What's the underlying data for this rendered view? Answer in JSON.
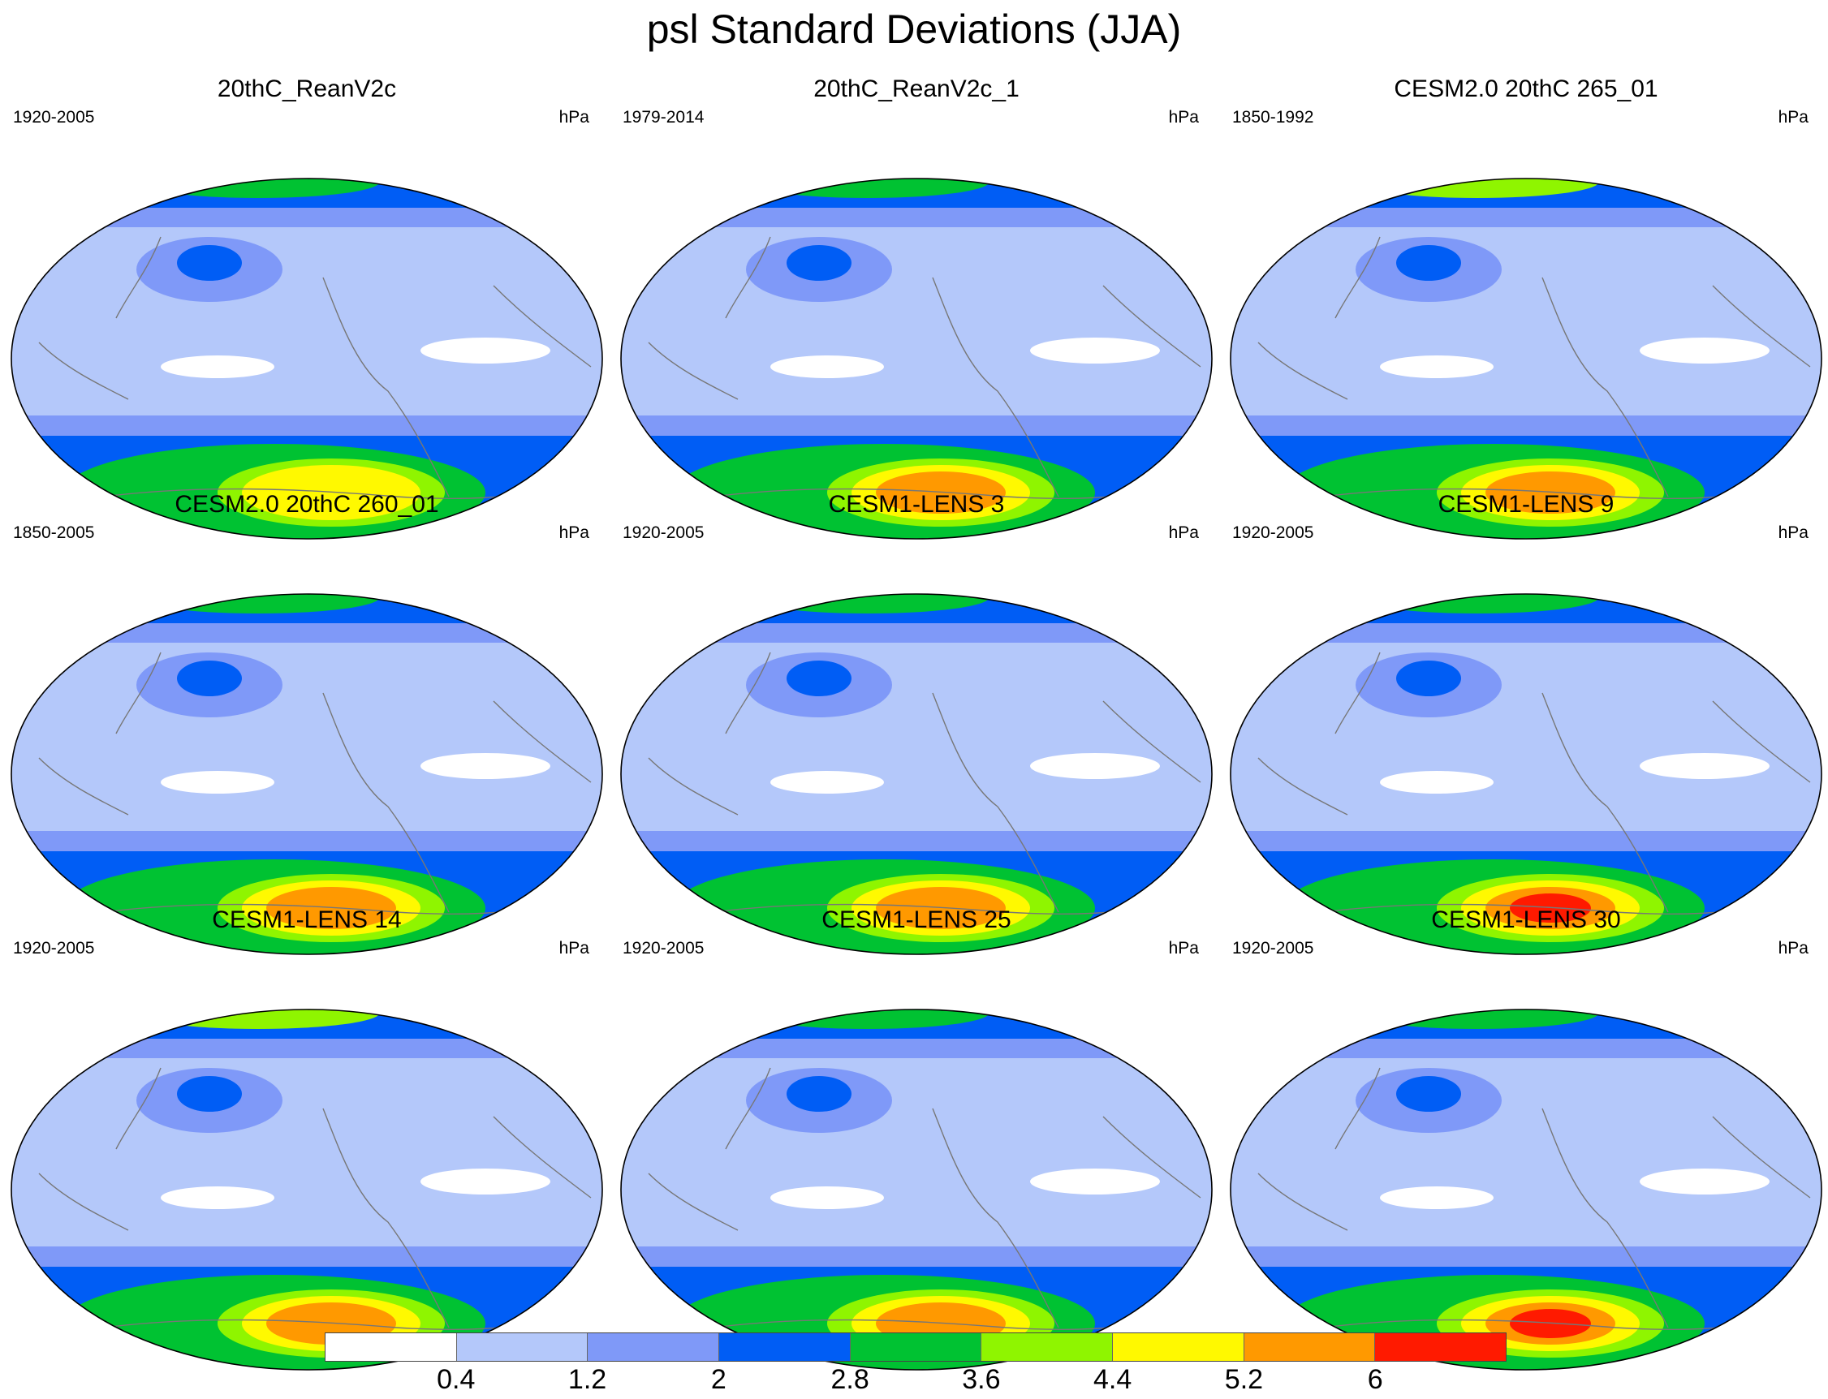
{
  "title": "psl Standard Deviations (JJA)",
  "colorbar": {
    "levels": [
      "0.4",
      "1.2",
      "2",
      "2.8",
      "3.6",
      "4.4",
      "5.2",
      "6"
    ],
    "colors": [
      "#ffffff",
      "#b4c8fa",
      "#7f99f8",
      "#005df5",
      "#00c232",
      "#8ff500",
      "#fff900",
      "#ff9900",
      "#ff1a00"
    ]
  },
  "panels": [
    {
      "title": "20thC_ReanV2c",
      "period": "1920-2005",
      "units": "hPa",
      "sh_max_class": 6,
      "north_max_class": 4
    },
    {
      "title": "20thC_ReanV2c_1",
      "period": "1979-2014",
      "units": "hPa",
      "sh_max_class": 7,
      "north_max_class": 4
    },
    {
      "title": "CESM2.0 20thC 265_01",
      "period": "1850-1992",
      "units": "hPa",
      "sh_max_class": 7,
      "north_max_class": 5
    },
    {
      "title": "CESM2.0 20thC 260_01",
      "period": "1850-2005",
      "units": "hPa",
      "sh_max_class": 7,
      "north_max_class": 4
    },
    {
      "title": "CESM1-LENS 3",
      "period": "1920-2005",
      "units": "hPa",
      "sh_max_class": 7,
      "north_max_class": 4
    },
    {
      "title": "CESM1-LENS 9",
      "period": "1920-2005",
      "units": "hPa",
      "sh_max_class": 8,
      "north_max_class": 4
    },
    {
      "title": "CESM1-LENS 14",
      "period": "1920-2005",
      "units": "hPa",
      "sh_max_class": 7,
      "north_max_class": 5
    },
    {
      "title": "CESM1-LENS 25",
      "period": "1920-2005",
      "units": "hPa",
      "sh_max_class": 7,
      "north_max_class": 4
    },
    {
      "title": "CESM1-LENS 30",
      "period": "1920-2005",
      "units": "hPa",
      "sh_max_class": 8,
      "north_max_class": 4
    }
  ]
}
